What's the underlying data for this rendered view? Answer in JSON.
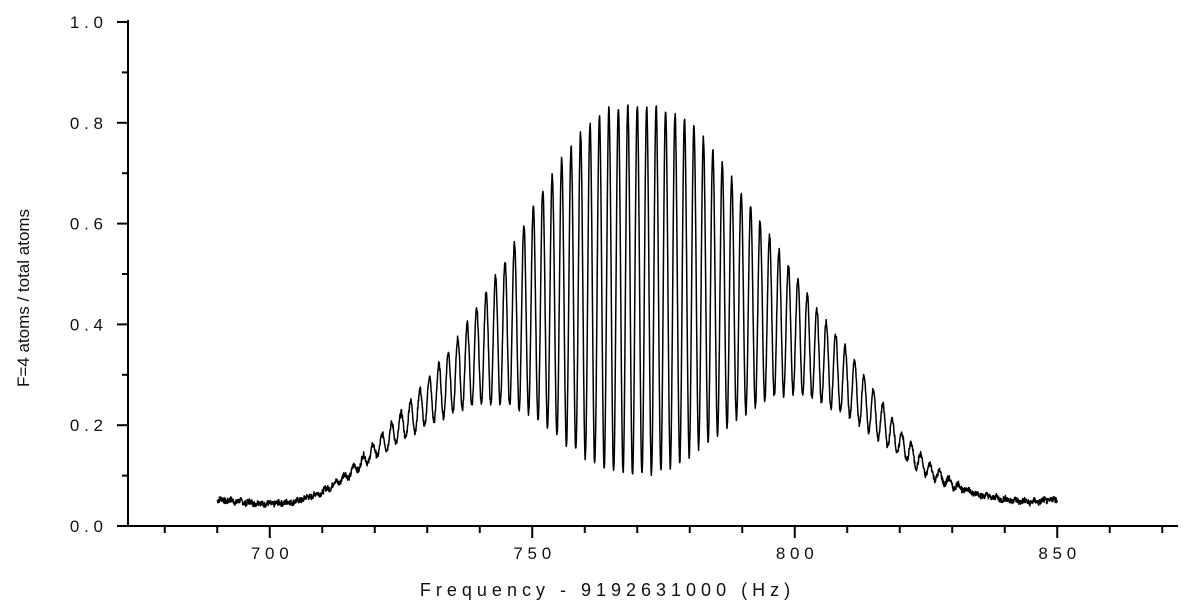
{
  "chart_data": {
    "type": "line",
    "title": "",
    "xlabel": "F r e q u e n c y   -   9 1 9 2 6 3 1 0 0 0   ( H z )",
    "ylabel": "F=4 atoms / total atoms",
    "xlim": [
      673,
      873
    ],
    "ylim": [
      0,
      1
    ],
    "grid": false,
    "x_ticks": [
      {
        "value": 700,
        "label": "7 0 0"
      },
      {
        "value": 750,
        "label": "7 5 0"
      },
      {
        "value": 800,
        "label": "8 0 0"
      },
      {
        "value": 850,
        "label": "8 5 0"
      }
    ],
    "y_ticks": [
      {
        "value": 0.0,
        "label": "0 . 0"
      },
      {
        "value": 0.2,
        "label": "0 . 2"
      },
      {
        "value": 0.4,
        "label": "0 . 4"
      },
      {
        "value": 0.6,
        "label": "0 . 6"
      },
      {
        "value": 0.8,
        "label": "0 . 8"
      },
      {
        "value": 1.0,
        "label": "1 . 0"
      }
    ],
    "series": [
      {
        "color": "#000000",
        "points_x": [
          690,
          695,
          700,
          705,
          710,
          715,
          720,
          725,
          730,
          735,
          740,
          745,
          750,
          755,
          760,
          765,
          770,
          775,
          780,
          785,
          790,
          795,
          800,
          805,
          810,
          815,
          820,
          825,
          830,
          835,
          840,
          845,
          850
        ],
        "upper": [
          0.055,
          0.05,
          0.045,
          0.05,
          0.07,
          0.11,
          0.165,
          0.225,
          0.29,
          0.36,
          0.44,
          0.53,
          0.63,
          0.72,
          0.79,
          0.83,
          0.835,
          0.83,
          0.8,
          0.74,
          0.66,
          0.58,
          0.5,
          0.42,
          0.35,
          0.27,
          0.19,
          0.13,
          0.09,
          0.065,
          0.055,
          0.05,
          0.055
        ],
        "lower": [
          0.05,
          0.045,
          0.042,
          0.047,
          0.065,
          0.095,
          0.135,
          0.17,
          0.2,
          0.225,
          0.245,
          0.24,
          0.22,
          0.175,
          0.135,
          0.11,
          0.1,
          0.11,
          0.14,
          0.18,
          0.22,
          0.255,
          0.265,
          0.245,
          0.22,
          0.18,
          0.14,
          0.1,
          0.075,
          0.06,
          0.05,
          0.045,
          0.05
        ],
        "fringe_period_hz": 1.8
      }
    ]
  }
}
